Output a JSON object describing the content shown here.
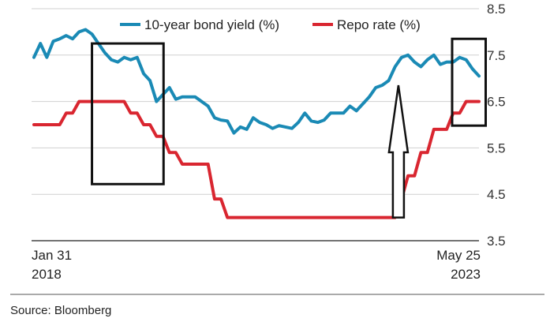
{
  "chart_data": {
    "type": "line",
    "x_start": "Jan 31 2018",
    "x_end": "May 25 2023",
    "ylim": [
      3.5,
      8.5
    ],
    "yticks": [
      "8.5",
      "7.5",
      "6.5",
      "5.5",
      "4.5",
      "3.5"
    ],
    "x_tick_labels": [
      {
        "month": "Jan 31",
        "year": "2018"
      },
      {
        "month": "May 25",
        "year": "2023"
      }
    ],
    "grid": true,
    "legend_placement": "top",
    "series": [
      {
        "name": "10-year bond yield (%)",
        "color": "#1a8ab5",
        "values": [
          7.45,
          7.75,
          7.45,
          7.8,
          7.85,
          7.92,
          7.85,
          8.0,
          8.05,
          7.95,
          7.75,
          7.55,
          7.4,
          7.35,
          7.45,
          7.4,
          7.45,
          7.1,
          6.95,
          6.5,
          6.65,
          6.8,
          6.55,
          6.6,
          6.6,
          6.6,
          6.5,
          6.4,
          6.15,
          6.1,
          6.08,
          5.82,
          5.95,
          5.9,
          6.15,
          6.05,
          6.0,
          5.92,
          5.98,
          5.95,
          5.92,
          6.05,
          6.25,
          6.08,
          6.05,
          6.1,
          6.25,
          6.25,
          6.25,
          6.4,
          6.3,
          6.45,
          6.6,
          6.8,
          6.85,
          6.95,
          7.25,
          7.45,
          7.5,
          7.35,
          7.25,
          7.4,
          7.5,
          7.3,
          7.35,
          7.35,
          7.45,
          7.4,
          7.2,
          7.05
        ]
      },
      {
        "name": "Repo rate (%)",
        "color": "#d92630",
        "values": [
          6.0,
          6.0,
          6.0,
          6.0,
          6.0,
          6.25,
          6.25,
          6.5,
          6.5,
          6.5,
          6.5,
          6.5,
          6.5,
          6.5,
          6.5,
          6.25,
          6.25,
          6.0,
          6.0,
          5.75,
          5.75,
          5.4,
          5.4,
          5.15,
          5.15,
          5.15,
          5.15,
          5.15,
          4.4,
          4.4,
          4.0,
          4.0,
          4.0,
          4.0,
          4.0,
          4.0,
          4.0,
          4.0,
          4.0,
          4.0,
          4.0,
          4.0,
          4.0,
          4.0,
          4.0,
          4.0,
          4.0,
          4.0,
          4.0,
          4.0,
          4.0,
          4.0,
          4.0,
          4.0,
          4.0,
          4.0,
          4.0,
          4.4,
          4.9,
          4.9,
          5.4,
          5.4,
          5.9,
          5.9,
          5.9,
          6.25,
          6.25,
          6.5,
          6.5,
          6.5
        ]
      }
    ],
    "annotations": [
      {
        "kind": "box",
        "x_from": 0.135,
        "x_to": 0.295,
        "y_from": 4.72,
        "y_to": 7.75
      },
      {
        "kind": "box",
        "x_from": 0.94,
        "x_to": 1.015,
        "y_from": 5.98,
        "y_to": 7.85
      },
      {
        "kind": "up-arrow",
        "x": 0.82,
        "y_from": 4.0,
        "y_to": 6.85
      }
    ],
    "source": "Source: Bloomberg"
  }
}
